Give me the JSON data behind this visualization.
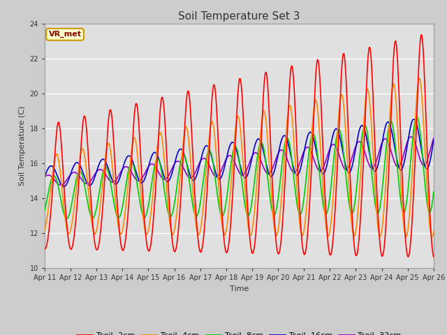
{
  "title": "Soil Temperature Set 3",
  "xlabel": "Time",
  "ylabel": "Soil Temperature (C)",
  "ylim": [
    10,
    24
  ],
  "yticks": [
    10,
    12,
    14,
    16,
    18,
    20,
    22,
    24
  ],
  "xlim": [
    0,
    360
  ],
  "annotation_text": "VR_met",
  "annotation_bg": "#ffffcc",
  "annotation_border": "#cc9900",
  "annotation_text_color": "#880000",
  "series": {
    "Tsoil -2cm": {
      "color": "#ff0000",
      "lw": 1.2
    },
    "Tsoil -4cm": {
      "color": "#ff8800",
      "lw": 1.2
    },
    "Tsoil -8cm": {
      "color": "#00cc00",
      "lw": 1.2
    },
    "Tsoil -16cm": {
      "color": "#0000cc",
      "lw": 1.2
    },
    "Tsoil -32cm": {
      "color": "#9900cc",
      "lw": 1.2
    }
  },
  "xtick_labels": [
    "Apr 11",
    "Apr 12",
    "Apr 13",
    "Apr 14",
    "Apr 15",
    "Apr 16",
    "Apr 17",
    "Apr 18",
    "Apr 19",
    "Apr 20",
    "Apr 21",
    "Apr 22",
    "Apr 23",
    "Apr 24",
    "Apr 25",
    "Apr 26"
  ],
  "xtick_positions": [
    0,
    24,
    48,
    72,
    96,
    120,
    144,
    168,
    192,
    216,
    240,
    264,
    288,
    312,
    336,
    360
  ]
}
